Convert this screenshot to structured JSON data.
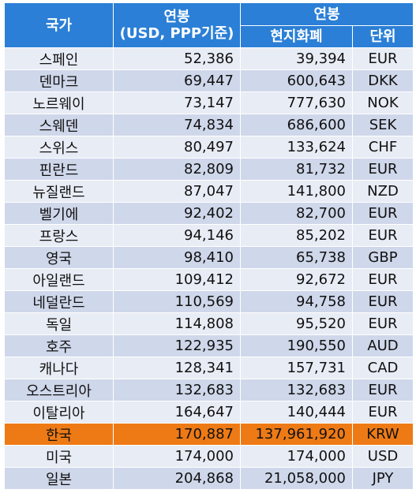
{
  "header": {
    "country": "국가",
    "salary_usd_line1": "연봉",
    "salary_usd_line2": "(USD, PPP기준)",
    "salary_group": "연봉",
    "local_currency": "현지화폐",
    "unit": "단위"
  },
  "colors": {
    "header_bg": "#2b7fd6",
    "row_light": "#e8ecf5",
    "row_dark": "#cfd7ea",
    "highlight": "#ee7a16"
  },
  "rows": [
    {
      "country": "스페인",
      "usd": "52,386",
      "local": "39,394",
      "unit": "EUR"
    },
    {
      "country": "덴마크",
      "usd": "69,447",
      "local": "600,643",
      "unit": "DKK"
    },
    {
      "country": "노르웨이",
      "usd": "73,147",
      "local": "777,630",
      "unit": "NOK"
    },
    {
      "country": "스웨덴",
      "usd": "74,834",
      "local": "686,600",
      "unit": "SEK"
    },
    {
      "country": "스위스",
      "usd": "80,497",
      "local": "133,624",
      "unit": "CHF"
    },
    {
      "country": "핀란드",
      "usd": "82,809",
      "local": "81,732",
      "unit": "EUR"
    },
    {
      "country": "뉴질랜드",
      "usd": "87,047",
      "local": "141,800",
      "unit": "NZD"
    },
    {
      "country": "벨기에",
      "usd": "92,402",
      "local": "82,700",
      "unit": "EUR"
    },
    {
      "country": "프랑스",
      "usd": "94,146",
      "local": "85,202",
      "unit": "EUR"
    },
    {
      "country": "영국",
      "usd": "98,410",
      "local": "65,738",
      "unit": "GBP"
    },
    {
      "country": "아일랜드",
      "usd": "109,412",
      "local": "92,672",
      "unit": "EUR"
    },
    {
      "country": "네덜란드",
      "usd": "110,569",
      "local": "94,758",
      "unit": "EUR"
    },
    {
      "country": "독일",
      "usd": "114,808",
      "local": "95,520",
      "unit": "EUR"
    },
    {
      "country": "호주",
      "usd": "122,935",
      "local": "190,550",
      "unit": "AUD"
    },
    {
      "country": "캐나다",
      "usd": "128,341",
      "local": "157,731",
      "unit": "CAD"
    },
    {
      "country": "오스트리아",
      "usd": "132,683",
      "local": "132,683",
      "unit": "EUR"
    },
    {
      "country": "이탈리아",
      "usd": "164,647",
      "local": "140,444",
      "unit": "EUR"
    },
    {
      "country": "한국",
      "usd": "170,887",
      "local": "137,961,920",
      "unit": "KRW",
      "highlight": true
    },
    {
      "country": "미국",
      "usd": "174,000",
      "local": "174,000",
      "unit": "USD"
    },
    {
      "country": "일본",
      "usd": "204,868",
      "local": "21,058,000",
      "unit": "JPY"
    }
  ]
}
